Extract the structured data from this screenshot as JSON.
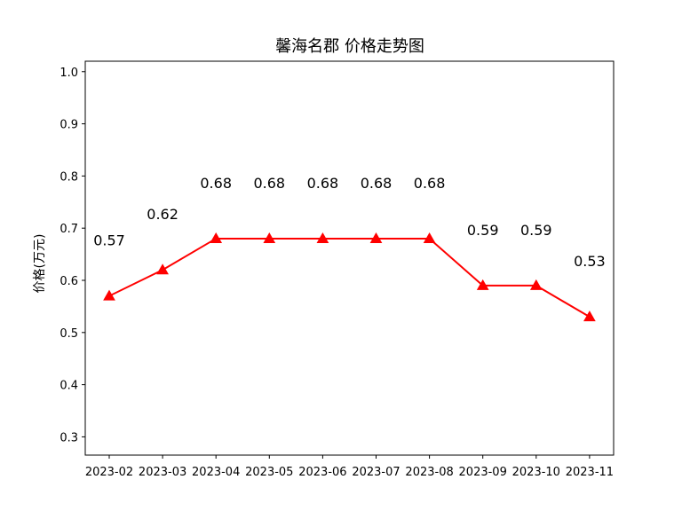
{
  "chart_data": {
    "type": "line",
    "title": "馨海名郡 价格走势图",
    "xlabel": "",
    "ylabel": "价格(万元)",
    "categories": [
      "2023-02",
      "2023-03",
      "2023-04",
      "2023-05",
      "2023-06",
      "2023-07",
      "2023-08",
      "2023-09",
      "2023-10",
      "2023-11"
    ],
    "series": [
      {
        "values": [
          0.57,
          0.62,
          0.68,
          0.68,
          0.68,
          0.68,
          0.68,
          0.59,
          0.59,
          0.53
        ],
        "labels": [
          "0.57",
          "0.62",
          "0.68",
          "0.68",
          "0.68",
          "0.68",
          "0.68",
          "0.59",
          "0.59",
          "0.53"
        ],
        "color": "#ff0000",
        "marker": "triangle"
      }
    ],
    "ylim": [
      0.265,
      1.02
    ],
    "yticks": [
      "0.3",
      "0.4",
      "0.5",
      "0.6",
      "0.7",
      "0.8",
      "0.9",
      "1.0"
    ],
    "grid": false,
    "legend": "none"
  }
}
